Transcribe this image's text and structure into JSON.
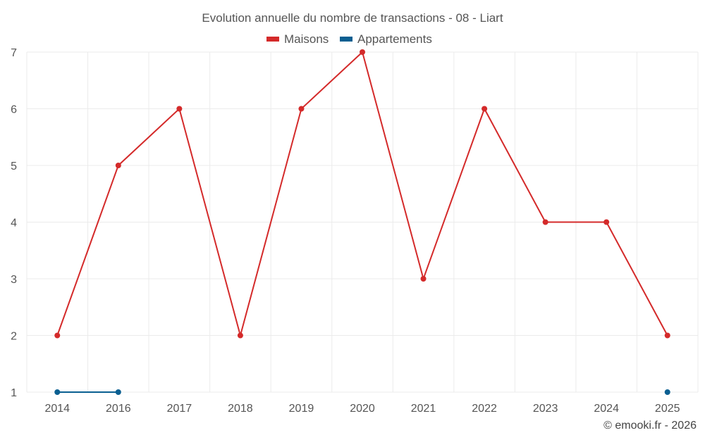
{
  "chart_data": {
    "type": "line",
    "title": "Evolution annuelle du nombre de transactions - 08 - Liart",
    "categories": [
      "2014",
      "2016",
      "2017",
      "2018",
      "2019",
      "2020",
      "2021",
      "2022",
      "2023",
      "2024",
      "2025"
    ],
    "ylim": [
      1,
      7
    ],
    "yticks": [
      "1",
      "2",
      "3",
      "4",
      "5",
      "6",
      "7"
    ],
    "grid": true,
    "legend_position": "top-center",
    "xlabel": "",
    "ylabel": "",
    "series": [
      {
        "name": "Maisons",
        "color": "#d42a2a",
        "values": [
          2,
          5,
          6,
          2,
          6,
          7,
          3,
          6,
          4,
          4,
          2
        ]
      },
      {
        "name": "Appartements",
        "color": "#0a5f91",
        "values": [
          1,
          1,
          null,
          null,
          null,
          null,
          null,
          null,
          null,
          null,
          1
        ]
      }
    ]
  },
  "footer": "© emooki.fr - 2026"
}
